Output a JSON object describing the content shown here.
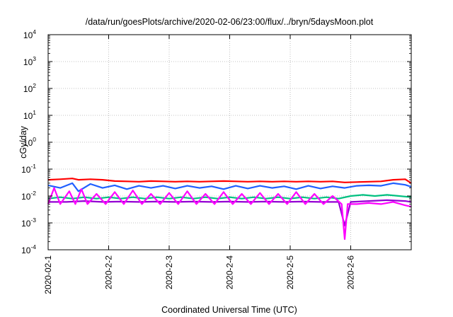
{
  "chart_data": {
    "type": "line",
    "title": "/data/run/goesPlots/archive/2020-02-06/23:00/flux/../bryn/5daysMoon.plot",
    "xlabel": "Coordinated Universal Time (UTC)",
    "ylabel": "cGy/day",
    "yscale": "log",
    "ylim": [
      0.0001,
      10000
    ],
    "y_ticks": [
      {
        "base": "10",
        "exp": "-4"
      },
      {
        "base": "10",
        "exp": "-3"
      },
      {
        "base": "10",
        "exp": "-2"
      },
      {
        "base": "10",
        "exp": "-1"
      },
      {
        "base": "10",
        "exp": "0"
      },
      {
        "base": "10",
        "exp": "1"
      },
      {
        "base": "10",
        "exp": "2"
      },
      {
        "base": "10",
        "exp": "3"
      },
      {
        "base": "10",
        "exp": "4"
      }
    ],
    "x_ticks": [
      "2020-02-1",
      "2020-2-2",
      "2020-2-3",
      "2020-2-4",
      "2020-2-5",
      "2020-2-6"
    ],
    "xlim_days": [
      0,
      6
    ],
    "grid": true,
    "legend": "none",
    "series": [
      {
        "color": "#ff0000",
        "points": [
          [
            0,
            0.04
          ],
          [
            0.2,
            0.042
          ],
          [
            0.4,
            0.045
          ],
          [
            0.5,
            0.04
          ],
          [
            0.7,
            0.042
          ],
          [
            0.9,
            0.04
          ],
          [
            1.1,
            0.036
          ],
          [
            1.3,
            0.035
          ],
          [
            1.5,
            0.034
          ],
          [
            1.7,
            0.036
          ],
          [
            1.9,
            0.035
          ],
          [
            2.1,
            0.034
          ],
          [
            2.3,
            0.035
          ],
          [
            2.5,
            0.034
          ],
          [
            2.7,
            0.035
          ],
          [
            2.9,
            0.036
          ],
          [
            3.1,
            0.035
          ],
          [
            3.3,
            0.034
          ],
          [
            3.5,
            0.035
          ],
          [
            3.7,
            0.034
          ],
          [
            3.9,
            0.035
          ],
          [
            4.1,
            0.034
          ],
          [
            4.3,
            0.035
          ],
          [
            4.5,
            0.034
          ],
          [
            4.7,
            0.035
          ],
          [
            4.9,
            0.032
          ],
          [
            5.1,
            0.033
          ],
          [
            5.3,
            0.034
          ],
          [
            5.5,
            0.035
          ],
          [
            5.7,
            0.04
          ],
          [
            5.9,
            0.042
          ],
          [
            6.0,
            0.03
          ]
        ]
      },
      {
        "color": "#1f5fff",
        "points": [
          [
            0,
            0.025
          ],
          [
            0.2,
            0.02
          ],
          [
            0.4,
            0.03
          ],
          [
            0.5,
            0.015
          ],
          [
            0.7,
            0.028
          ],
          [
            0.9,
            0.02
          ],
          [
            1.1,
            0.025
          ],
          [
            1.3,
            0.018
          ],
          [
            1.5,
            0.024
          ],
          [
            1.7,
            0.02
          ],
          [
            1.9,
            0.024
          ],
          [
            2.1,
            0.019
          ],
          [
            2.3,
            0.024
          ],
          [
            2.5,
            0.02
          ],
          [
            2.7,
            0.023
          ],
          [
            2.9,
            0.018
          ],
          [
            3.1,
            0.024
          ],
          [
            3.3,
            0.019
          ],
          [
            3.5,
            0.024
          ],
          [
            3.7,
            0.02
          ],
          [
            3.9,
            0.023
          ],
          [
            4.1,
            0.018
          ],
          [
            4.3,
            0.024
          ],
          [
            4.5,
            0.019
          ],
          [
            4.7,
            0.023
          ],
          [
            4.9,
            0.02
          ],
          [
            5.1,
            0.024
          ],
          [
            5.3,
            0.025
          ],
          [
            5.5,
            0.024
          ],
          [
            5.7,
            0.03
          ],
          [
            5.9,
            0.026
          ],
          [
            6.0,
            0.022
          ]
        ]
      },
      {
        "color": "#00c080",
        "points": [
          [
            0,
            0.008
          ],
          [
            0.2,
            0.009
          ],
          [
            0.4,
            0.008
          ],
          [
            0.6,
            0.009
          ],
          [
            0.8,
            0.008
          ],
          [
            1.0,
            0.009
          ],
          [
            1.2,
            0.008
          ],
          [
            1.4,
            0.009
          ],
          [
            1.6,
            0.008
          ],
          [
            1.8,
            0.009
          ],
          [
            2.0,
            0.008
          ],
          [
            2.2,
            0.009
          ],
          [
            2.4,
            0.008
          ],
          [
            2.6,
            0.009
          ],
          [
            2.8,
            0.008
          ],
          [
            3.0,
            0.009
          ],
          [
            3.2,
            0.008
          ],
          [
            3.4,
            0.009
          ],
          [
            3.6,
            0.008
          ],
          [
            3.8,
            0.009
          ],
          [
            4.0,
            0.008
          ],
          [
            4.2,
            0.009
          ],
          [
            4.4,
            0.008
          ],
          [
            4.6,
            0.009
          ],
          [
            4.8,
            0.008
          ],
          [
            5.0,
            0.01
          ],
          [
            5.2,
            0.011
          ],
          [
            5.4,
            0.01
          ],
          [
            5.6,
            0.011
          ],
          [
            5.8,
            0.01
          ],
          [
            6.0,
            0.009
          ]
        ]
      },
      {
        "color": "#9400d3",
        "points": [
          [
            0,
            0.006
          ],
          [
            0.3,
            0.006
          ],
          [
            0.6,
            0.0065
          ],
          [
            0.9,
            0.006
          ],
          [
            1.2,
            0.0062
          ],
          [
            1.5,
            0.006
          ],
          [
            1.8,
            0.0062
          ],
          [
            2.1,
            0.006
          ],
          [
            2.4,
            0.0062
          ],
          [
            2.7,
            0.006
          ],
          [
            3.0,
            0.0062
          ],
          [
            3.3,
            0.006
          ],
          [
            3.6,
            0.0062
          ],
          [
            3.9,
            0.006
          ],
          [
            4.2,
            0.0062
          ],
          [
            4.5,
            0.006
          ],
          [
            4.8,
            0.006
          ],
          [
            4.9,
            0.0008
          ],
          [
            5.0,
            0.006
          ],
          [
            5.3,
            0.0065
          ],
          [
            5.6,
            0.007
          ],
          [
            5.9,
            0.0065
          ],
          [
            6.0,
            0.006
          ]
        ]
      },
      {
        "color": "#ff00ff",
        "points": [
          [
            0,
            0.005
          ],
          [
            0.1,
            0.02
          ],
          [
            0.2,
            0.005
          ],
          [
            0.35,
            0.015
          ],
          [
            0.45,
            0.005
          ],
          [
            0.55,
            0.018
          ],
          [
            0.65,
            0.005
          ],
          [
            0.8,
            0.012
          ],
          [
            0.95,
            0.005
          ],
          [
            1.1,
            0.014
          ],
          [
            1.25,
            0.005
          ],
          [
            1.4,
            0.016
          ],
          [
            1.55,
            0.005
          ],
          [
            1.7,
            0.012
          ],
          [
            1.85,
            0.005
          ],
          [
            2.0,
            0.013
          ],
          [
            2.15,
            0.005
          ],
          [
            2.3,
            0.015
          ],
          [
            2.45,
            0.005
          ],
          [
            2.6,
            0.012
          ],
          [
            2.75,
            0.005
          ],
          [
            2.9,
            0.014
          ],
          [
            3.05,
            0.005
          ],
          [
            3.2,
            0.012
          ],
          [
            3.35,
            0.005
          ],
          [
            3.5,
            0.013
          ],
          [
            3.65,
            0.005
          ],
          [
            3.8,
            0.012
          ],
          [
            3.95,
            0.005
          ],
          [
            4.1,
            0.014
          ],
          [
            4.25,
            0.005
          ],
          [
            4.4,
            0.012
          ],
          [
            4.55,
            0.005
          ],
          [
            4.7,
            0.01
          ],
          [
            4.85,
            0.005
          ],
          [
            4.9,
            0.00025
          ],
          [
            4.95,
            0.005
          ],
          [
            5.1,
            0.005
          ],
          [
            5.3,
            0.0055
          ],
          [
            5.5,
            0.005
          ],
          [
            5.7,
            0.006
          ],
          [
            5.9,
            0.0045
          ],
          [
            6.0,
            0.004
          ]
        ]
      }
    ]
  }
}
